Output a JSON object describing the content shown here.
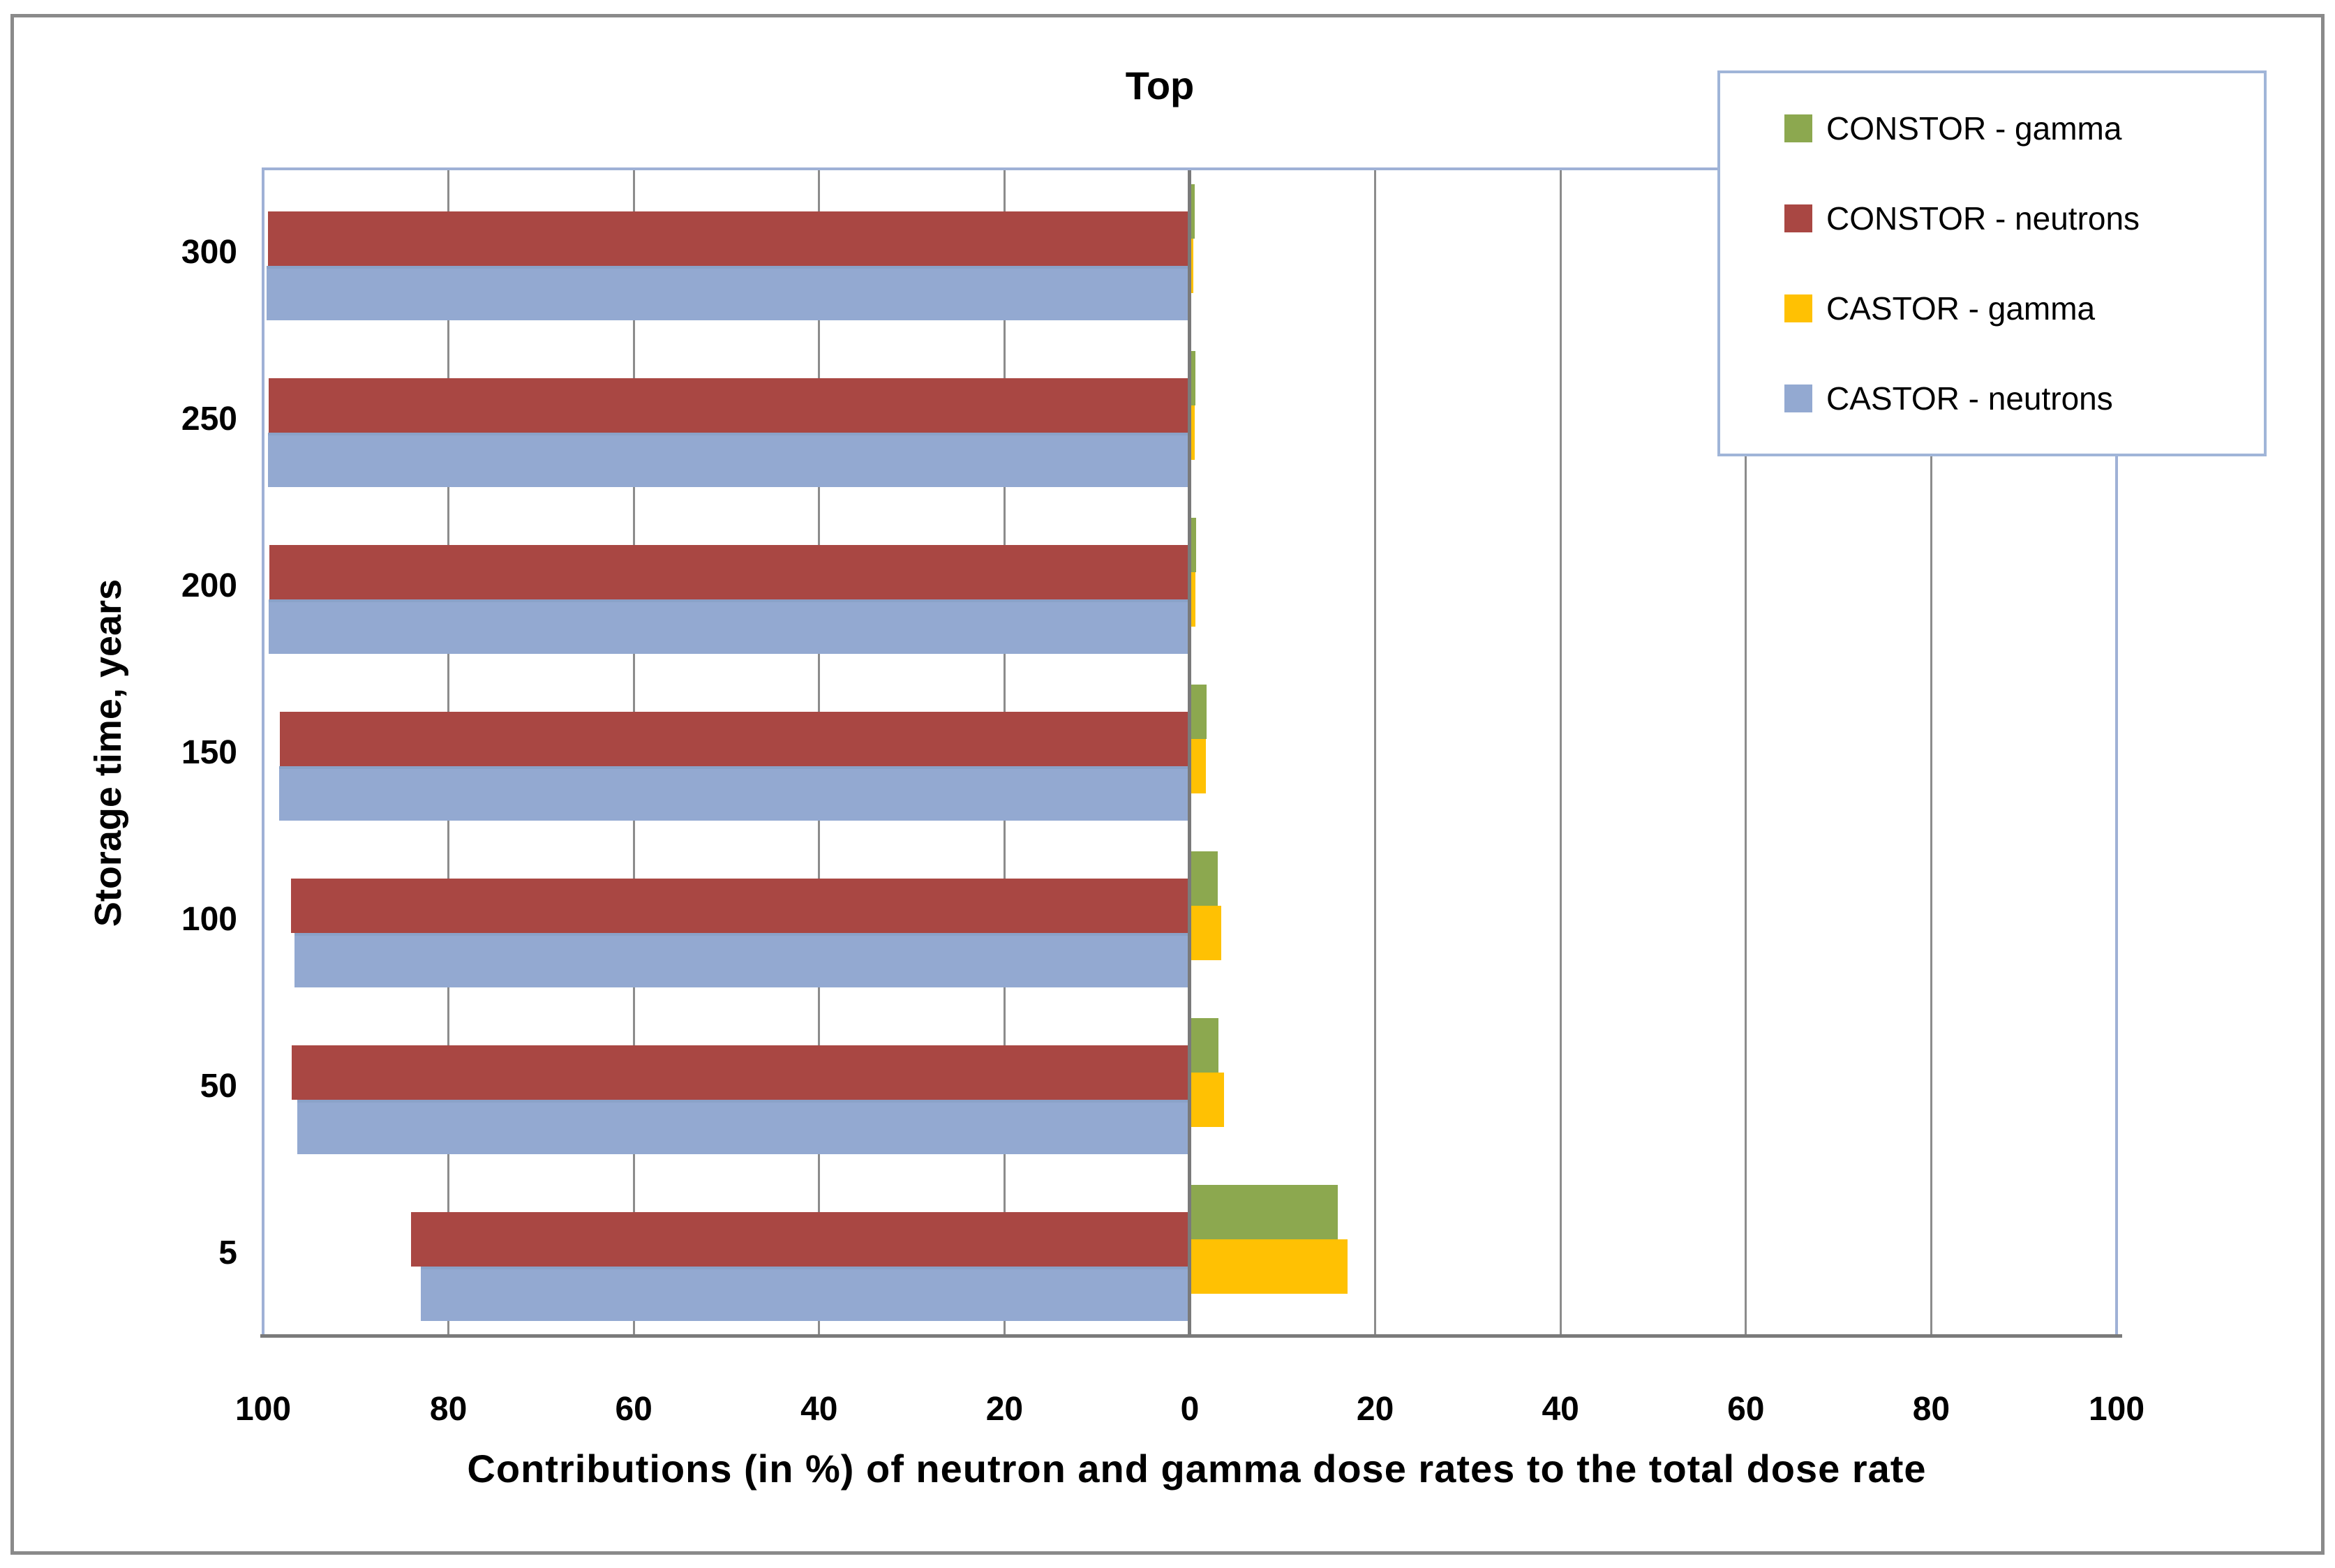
{
  "chart_data": {
    "type": "bar",
    "orientation": "horizontal-diverging",
    "title": "Top",
    "xlabel": "Contributions (in %) of neutron and gamma dose rates to the total dose rate",
    "ylabel": "Storage time, years",
    "categories": [
      "300",
      "250",
      "200",
      "150",
      "100",
      "50",
      "5"
    ],
    "x_tick_values": [
      -100,
      -80,
      -60,
      -40,
      -20,
      0,
      20,
      40,
      60,
      80,
      100
    ],
    "x_tick_labels": [
      "100",
      "80",
      "60",
      "40",
      "20",
      "0",
      "20",
      "40",
      "60",
      "80",
      "100"
    ],
    "xlim": [
      -100,
      100
    ],
    "grid": true,
    "legend_position": "top-right",
    "series": [
      {
        "name": "CONSTOR - gamma",
        "color": "#8ca84f",
        "direction": "right",
        "values": [
          0.5,
          0.6,
          0.7,
          1.8,
          3.0,
          3.1,
          16
        ]
      },
      {
        "name": "CONSTOR - neutrons",
        "color": "#a94743",
        "direction": "left",
        "values": [
          99.5,
          99.4,
          99.3,
          98.2,
          97.0,
          96.9,
          84
        ]
      },
      {
        "name": "CASTOR - gamma",
        "color": "#ffc103",
        "direction": "right",
        "values": [
          0.4,
          0.5,
          0.6,
          1.7,
          3.4,
          3.7,
          17
        ]
      },
      {
        "name": "CASTOR - neutrons",
        "color": "#93a9d1",
        "direction": "left",
        "values": [
          99.6,
          99.5,
          99.4,
          98.3,
          96.6,
          96.3,
          83
        ]
      }
    ],
    "colors": {
      "gridline": "#8c8c8c",
      "zero_axis": "#7a7a7a",
      "plot_border": "#9fb1d6",
      "legend_border": "#a0b5d8",
      "outer_border": "#8a8a8a",
      "text": "#000000"
    }
  }
}
